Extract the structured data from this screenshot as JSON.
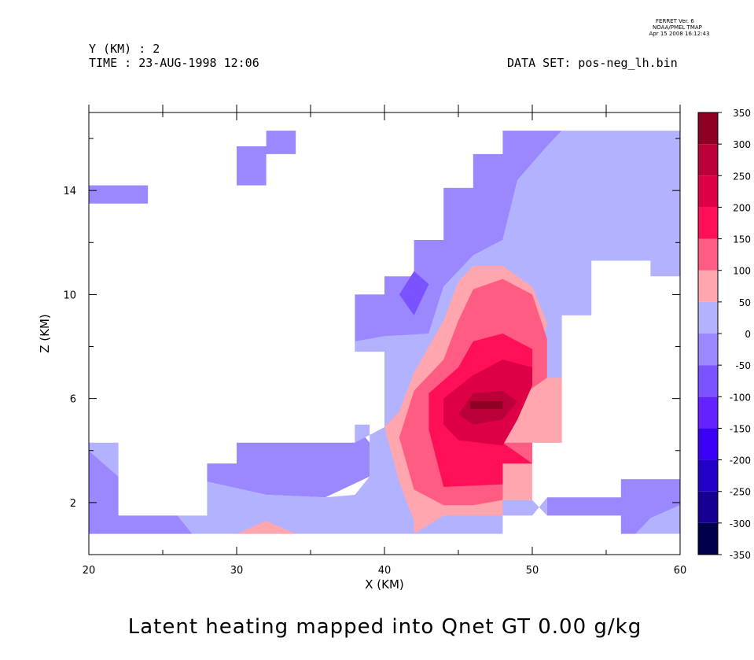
{
  "header": {
    "ferret_version": "FERRET Ver. 6",
    "lab": "NOAA/PMEL TMAP",
    "timestamp": "Apr 15 2008 16:12:43",
    "y_line": "Y (KM) : 2",
    "time_line": "TIME : 23-AUG-1998 12:06",
    "dataset_line": "DATA SET: pos-neg_lh.bin"
  },
  "chart_data": {
    "type": "heatmap",
    "title": "Latent heating mapped into Qnet GT 0.00 g/kg",
    "xlabel": "X (KM)",
    "ylabel": "Z (KM)",
    "xlim": [
      20,
      60
    ],
    "ylim": [
      0,
      17
    ],
    "x_ticks": [
      20,
      30,
      40,
      50,
      60
    ],
    "y_ticks": [
      2,
      6,
      10,
      14
    ],
    "colorbar": {
      "levels": [
        -350,
        -300,
        -250,
        -200,
        -150,
        -100,
        -50,
        0,
        50,
        100,
        150,
        200,
        250,
        300,
        350
      ],
      "colors": [
        "#00004a",
        "#150093",
        "#2200c8",
        "#3b00f3",
        "#6322ff",
        "#7b52ff",
        "#9b88ff",
        "#b2b2ff",
        "#ffa6ae",
        "#ff5c83",
        "#ff0f57",
        "#de0047",
        "#bb0039",
        "#8c0024"
      ]
    },
    "regions": [
      {
        "value": -25,
        "points": [
          [
            20,
            4.0
          ],
          [
            22,
            3.0
          ],
          [
            22,
            1.5
          ],
          [
            26,
            1.5
          ],
          [
            27,
            0.8
          ],
          [
            20,
            0.8
          ]
        ]
      },
      {
        "value": -25,
        "points": [
          [
            20,
            13.5
          ],
          [
            24,
            13.5
          ],
          [
            24,
            14.2
          ],
          [
            20,
            14.2
          ]
        ]
      },
      {
        "value": -25,
        "points": [
          [
            30,
            14.2
          ],
          [
            32,
            14.2
          ],
          [
            32,
            15.4
          ],
          [
            34,
            15.4
          ],
          [
            34,
            16.3
          ],
          [
            32,
            16.3
          ],
          [
            32,
            15.7
          ],
          [
            30,
            15.7
          ]
        ]
      },
      {
        "value": -25,
        "points": [
          [
            28,
            2.8
          ],
          [
            28,
            3.5
          ],
          [
            30,
            3.5
          ],
          [
            30,
            4.3
          ],
          [
            38,
            4.3
          ],
          [
            38,
            5.0
          ],
          [
            39,
            4.3
          ],
          [
            39,
            3.0
          ],
          [
            36,
            2.2
          ],
          [
            32,
            2.3
          ]
        ]
      },
      {
        "value": -25,
        "points": [
          [
            38,
            7.8
          ],
          [
            38,
            10.0
          ],
          [
            40,
            10.0
          ],
          [
            40,
            10.7
          ],
          [
            42,
            10.7
          ],
          [
            42,
            12.1
          ],
          [
            44,
            12.1
          ],
          [
            44,
            14.1
          ],
          [
            46,
            14.1
          ],
          [
            46,
            15.4
          ],
          [
            48,
            15.4
          ],
          [
            48,
            16.3
          ],
          [
            52,
            16.3
          ],
          [
            51,
            15.7
          ],
          [
            49,
            14.4
          ],
          [
            48,
            12.1
          ],
          [
            46,
            11.5
          ],
          [
            44,
            10.3
          ],
          [
            43,
            8.5
          ],
          [
            40,
            8.3
          ]
        ]
      },
      {
        "value": -25,
        "points": [
          [
            51,
            1.5
          ],
          [
            51,
            2.2
          ],
          [
            56,
            2.2
          ],
          [
            56,
            2.9
          ],
          [
            60,
            2.9
          ],
          [
            60,
            1.9
          ],
          [
            58,
            1.4
          ],
          [
            57,
            0.8
          ],
          [
            56,
            0.8
          ],
          [
            56,
            1.5
          ]
        ]
      },
      {
        "value": -75,
        "points": [
          [
            41,
            10.0
          ],
          [
            42,
            10.9
          ],
          [
            43,
            10.4
          ],
          [
            42,
            9.2
          ]
        ]
      },
      {
        "value": 25,
        "points": [
          [
            20,
            4.3
          ],
          [
            22,
            4.3
          ],
          [
            22,
            3.0
          ],
          [
            20,
            4.0
          ]
        ]
      },
      {
        "value": 25,
        "points": [
          [
            26,
            1.5
          ],
          [
            28,
            1.5
          ],
          [
            28,
            2.8
          ],
          [
            32,
            2.3
          ],
          [
            36,
            2.2
          ],
          [
            38,
            2.3
          ],
          [
            39,
            3.0
          ],
          [
            39,
            4.3
          ],
          [
            39,
            5.0
          ],
          [
            38,
            5.0
          ],
          [
            38,
            4.3
          ],
          [
            40,
            4.9
          ],
          [
            40,
            7.8
          ],
          [
            38,
            7.8
          ],
          [
            38,
            8.2
          ],
          [
            40,
            8.4
          ],
          [
            43,
            8.5
          ],
          [
            44,
            10.3
          ],
          [
            46,
            11.5
          ],
          [
            48,
            12.1
          ],
          [
            49,
            14.4
          ],
          [
            51,
            15.7
          ],
          [
            52,
            16.3
          ],
          [
            60,
            16.3
          ],
          [
            60,
            10.7
          ],
          [
            58,
            10.7
          ],
          [
            58,
            11.3
          ],
          [
            54,
            11.3
          ],
          [
            54,
            9.2
          ],
          [
            52,
            9.2
          ],
          [
            52,
            4.3
          ],
          [
            50,
            4.3
          ],
          [
            50,
            3.5
          ],
          [
            48,
            3.5
          ],
          [
            48,
            2.1
          ],
          [
            50,
            2.1
          ],
          [
            51,
            1.5
          ],
          [
            51,
            2.2
          ],
          [
            50,
            1.5
          ],
          [
            48,
            1.5
          ],
          [
            48,
            0.8
          ],
          [
            27,
            0.8
          ]
        ]
      },
      {
        "value": 25,
        "points": [
          [
            56,
            0.8
          ],
          [
            57,
            0.8
          ],
          [
            58,
            1.4
          ],
          [
            60,
            1.9
          ],
          [
            60,
            0.8
          ]
        ]
      },
      {
        "value": 75,
        "points": [
          [
            30,
            0.8
          ],
          [
            32,
            1.3
          ],
          [
            34,
            0.8
          ]
        ]
      },
      {
        "value": 75,
        "points": [
          [
            42,
            0.8
          ],
          [
            44,
            1.5
          ],
          [
            48,
            1.5
          ],
          [
            48,
            2.1
          ],
          [
            50,
            2.1
          ],
          [
            50,
            3.5
          ],
          [
            48,
            3.5
          ],
          [
            48,
            4.3
          ],
          [
            50,
            4.3
          ],
          [
            52,
            4.3
          ],
          [
            52,
            6.8
          ],
          [
            50,
            6.8
          ],
          [
            51,
            8.9
          ],
          [
            50,
            10.3
          ],
          [
            48,
            11.1
          ],
          [
            46,
            11.1
          ],
          [
            45,
            10.5
          ],
          [
            44,
            9.0
          ],
          [
            42,
            7.0
          ],
          [
            41,
            5.5
          ],
          [
            40,
            4.9
          ],
          [
            41,
            2.8
          ],
          [
            42,
            1.3
          ]
        ]
      },
      {
        "value": 125,
        "points": [
          [
            41,
            4.5
          ],
          [
            42,
            2.5
          ],
          [
            44,
            1.9
          ],
          [
            46,
            1.9
          ],
          [
            48,
            2.1
          ],
          [
            48,
            3.5
          ],
          [
            50,
            3.5
          ],
          [
            50,
            4.3
          ],
          [
            48,
            4.3
          ],
          [
            49,
            6.0
          ],
          [
            51,
            6.8
          ],
          [
            51,
            8.3
          ],
          [
            50,
            10.0
          ],
          [
            48,
            10.6
          ],
          [
            46,
            10.2
          ],
          [
            45,
            9.0
          ],
          [
            44,
            7.5
          ],
          [
            42,
            6.3
          ]
        ]
      },
      {
        "value": 175,
        "points": [
          [
            43,
            4.8
          ],
          [
            44,
            2.6
          ],
          [
            48,
            2.7
          ],
          [
            48,
            3.5
          ],
          [
            50,
            3.5
          ],
          [
            48,
            4.3
          ],
          [
            49,
            6.0
          ],
          [
            50,
            6.6
          ],
          [
            50,
            7.9
          ],
          [
            48,
            8.5
          ],
          [
            46,
            8.2
          ],
          [
            45,
            7.2
          ],
          [
            43,
            6.2
          ]
        ]
      },
      {
        "value": 225,
        "points": [
          [
            44,
            5.0
          ],
          [
            45,
            4.4
          ],
          [
            48,
            4.2
          ],
          [
            49,
            5.2
          ],
          [
            50,
            6.5
          ],
          [
            50,
            7.2
          ],
          [
            48,
            7.5
          ],
          [
            46,
            6.9
          ],
          [
            44,
            6.0
          ]
        ]
      },
      {
        "value": 275,
        "points": [
          [
            45,
            5.4
          ],
          [
            46,
            5.0
          ],
          [
            48,
            5.2
          ],
          [
            49,
            5.9
          ],
          [
            48,
            6.3
          ],
          [
            46,
            6.2
          ]
        ]
      },
      {
        "value": 325,
        "points": [
          [
            45.8,
            5.6
          ],
          [
            48,
            5.6
          ],
          [
            48,
            5.9
          ],
          [
            45.8,
            5.9
          ]
        ]
      }
    ]
  }
}
